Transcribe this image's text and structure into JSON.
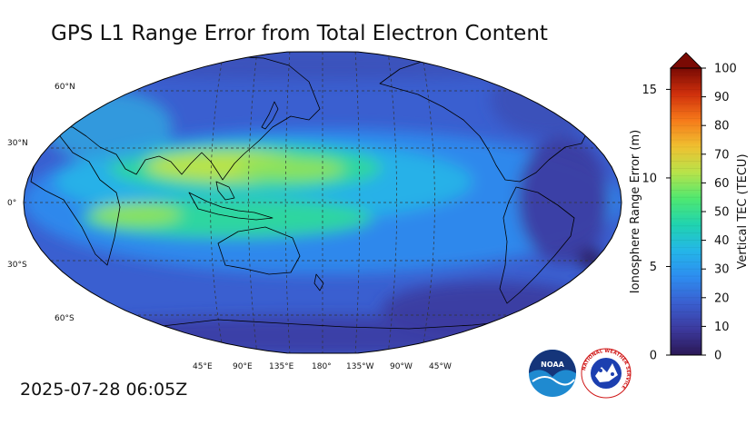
{
  "title": "GPS L1 Range Error from Total Electron Content",
  "timestamp": "2025-07-28 06:05Z",
  "map": {
    "projection": "robinson",
    "central_longitude": 180,
    "lat_labels": [
      "60°N",
      "30°N",
      "0°",
      "30°S",
      "60°S"
    ],
    "lon_labels": [
      "45°E",
      "90°E",
      "135°E",
      "180°",
      "135°W",
      "90°W",
      "45°W"
    ],
    "colors": {
      "ocean_base": "#3a5fd0",
      "equatorial_band": "#2fd6a0",
      "anomaly_peak": "#b8e34a",
      "coastline": "#000000",
      "graticule": "#333333"
    }
  },
  "range_error_axis": {
    "label": "Ionosphere Range Error (m)",
    "ticks": [
      "0",
      "5",
      "10",
      "15"
    ],
    "range": [
      0,
      16.2
    ]
  },
  "colorbar": {
    "label": "Vertical TEC (TECU)",
    "ticks": [
      "0",
      "10",
      "20",
      "30",
      "40",
      "50",
      "60",
      "70",
      "80",
      "90",
      "100"
    ],
    "range": [
      0,
      100
    ],
    "extend": "max",
    "stops": [
      "#2b1856",
      "#3c3a9e",
      "#3a5fd0",
      "#2d8df0",
      "#24b6e8",
      "#20d4b0",
      "#4fe870",
      "#b8e34a",
      "#f0c030",
      "#f67a1a",
      "#d0300c",
      "#7a0a04"
    ]
  },
  "logos": {
    "noaa_text": "NOAA",
    "nws_text": "NATIONAL WEATHER SERVICE"
  }
}
